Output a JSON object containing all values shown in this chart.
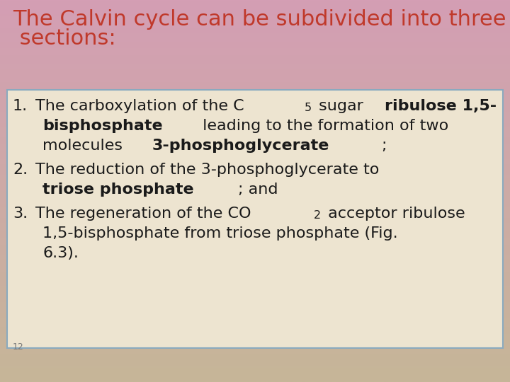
{
  "title_line1": "The Calvin cycle can be subdivided into three",
  "title_line2": " sections:",
  "title_color": "#c0392b",
  "bg_top_color": "#d4a0b5",
  "bg_bottom_color": "#c8b89a",
  "box_bg_color": "#ede4d0",
  "box_border_color": "#8aaabf",
  "text_color": "#1a1a1a",
  "slide_number": "12",
  "title_fontsize": 22,
  "content_fontsize": 16
}
